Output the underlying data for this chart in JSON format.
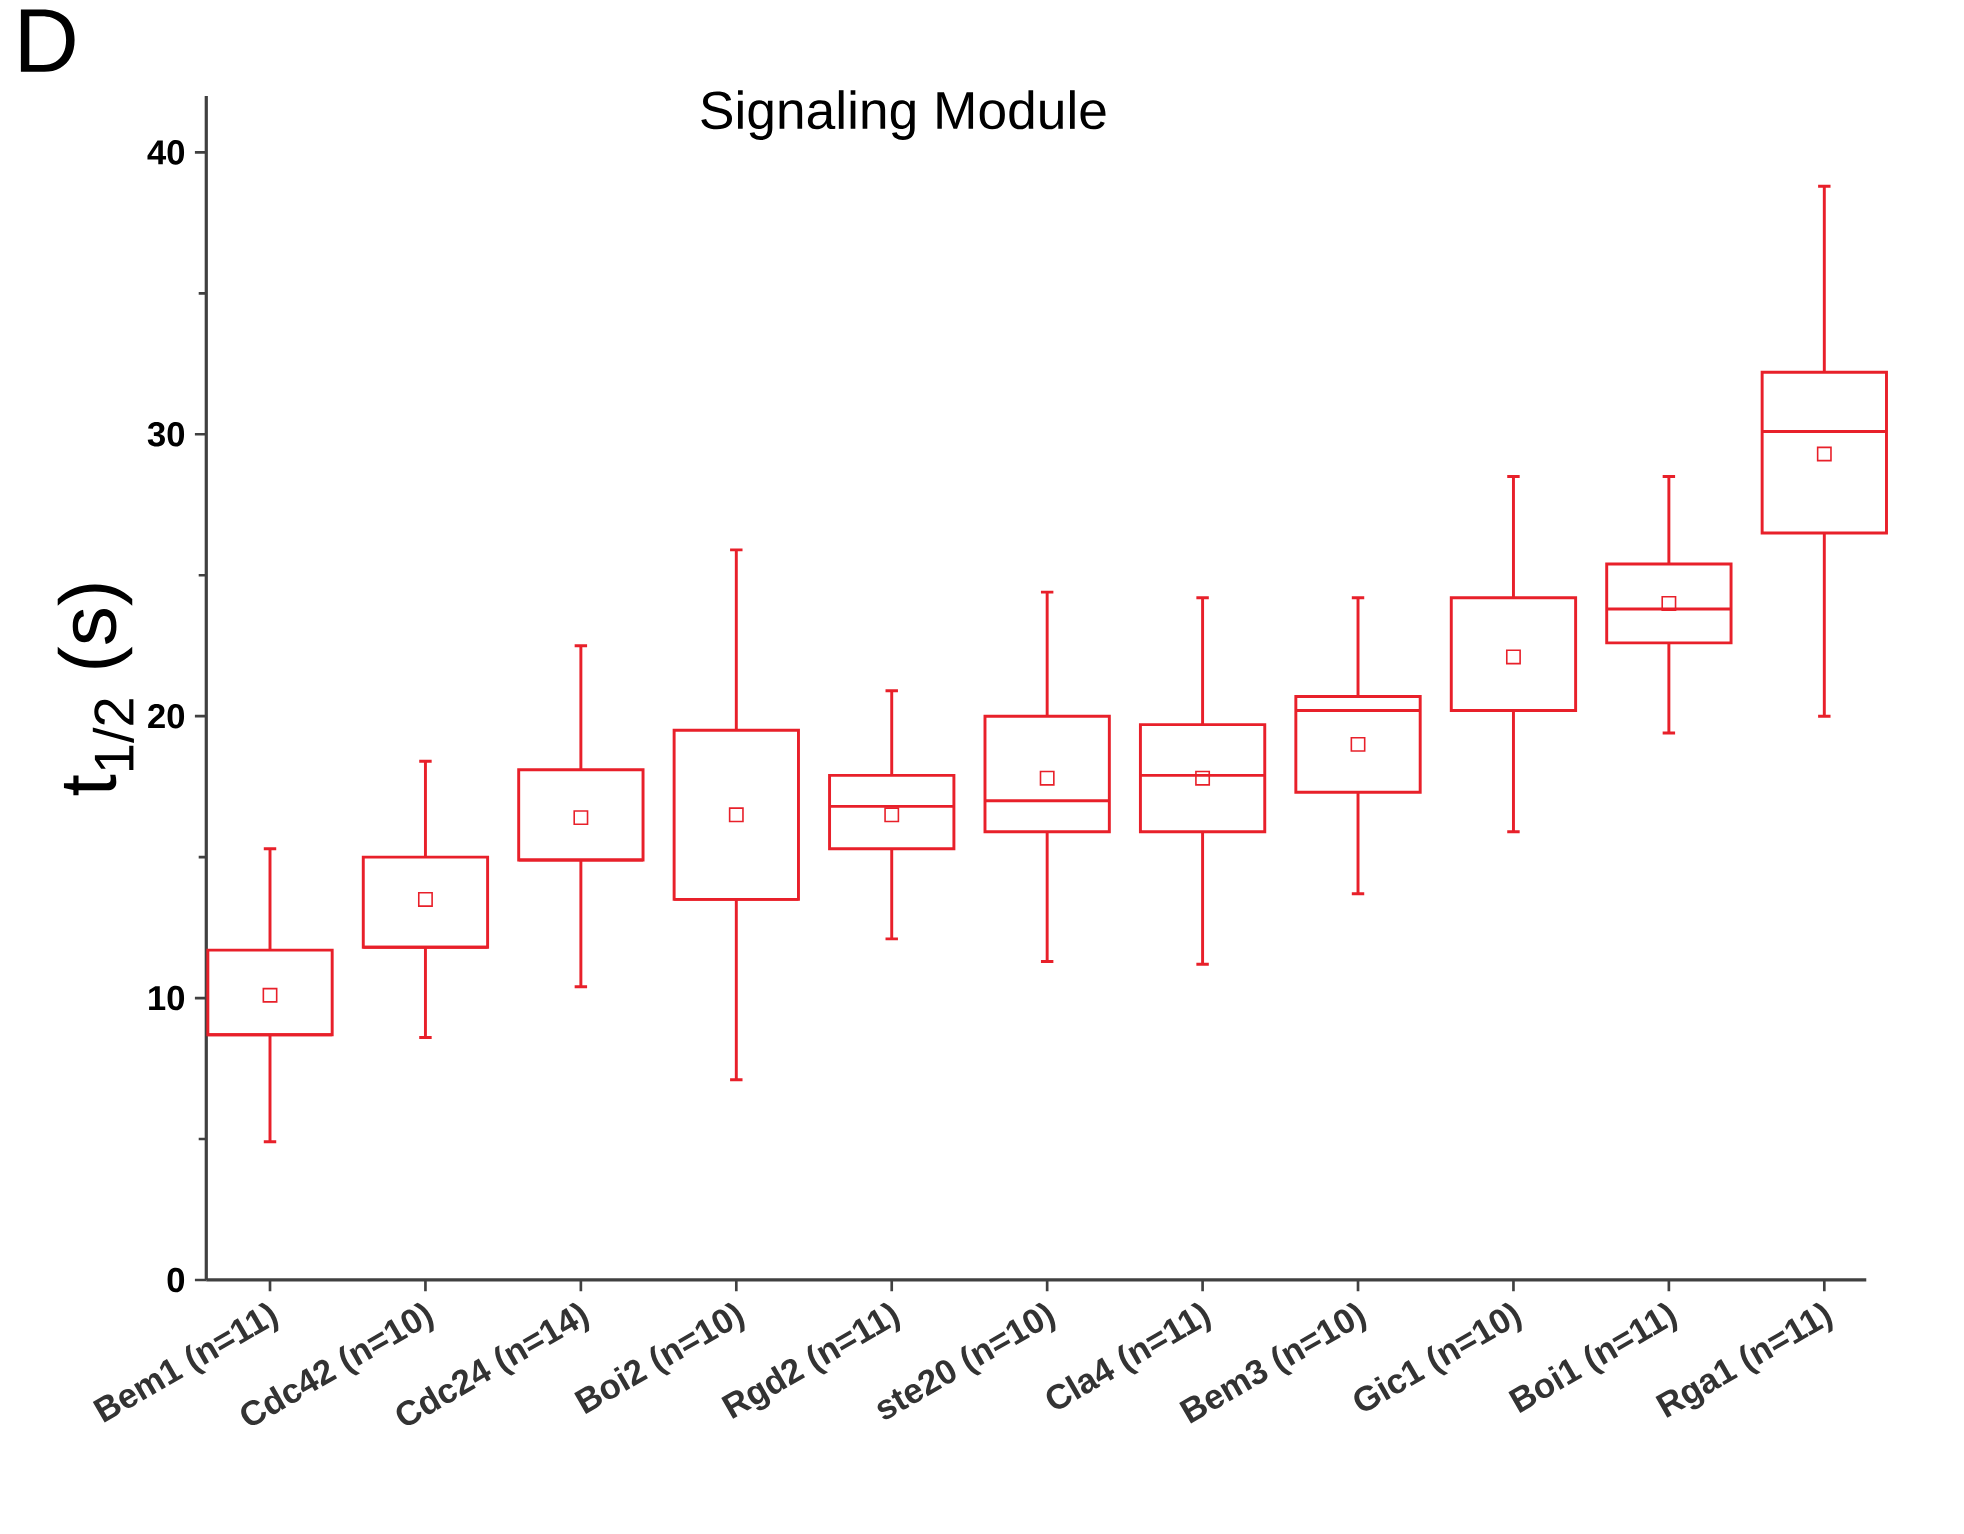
{
  "chart_data": {
    "type": "box",
    "title": "Signaling Module",
    "ylabel": "t$_{1/2}$ (s)",
    "annotations": [
      "D"
    ],
    "categories": [
      "Bem1 (n=11)",
      "Cdc42 (n=10)",
      "Cdc24 (n=14)",
      "Boi2 (n=10)",
      "Rgd2 (n=11)",
      "ste20 (n=10)",
      "Cla4 (n=11)",
      "Bem3 (n=10)",
      "Gic1 (n=10)",
      "Boi1 (n=11)",
      "Rga1 (n=11)"
    ],
    "series": [
      {
        "color": "#e8202a",
        "boxes": [
          {
            "low": 4.9,
            "q1": 8.7,
            "median": 8.7,
            "q3": 11.7,
            "high": 15.3,
            "mean": 10.1
          },
          {
            "low": 8.6,
            "q1": 11.8,
            "median": 11.8,
            "q3": 15.0,
            "high": 18.4,
            "mean": 13.5
          },
          {
            "low": 10.4,
            "q1": 14.9,
            "median": 14.9,
            "q3": 18.1,
            "high": 22.5,
            "mean": 16.4
          },
          {
            "low": 7.1,
            "q1": 13.5,
            "median": 13.5,
            "q3": 19.5,
            "high": 25.9,
            "mean": 16.5
          },
          {
            "low": 12.1,
            "q1": 15.3,
            "median": 16.8,
            "q3": 17.9,
            "high": 20.9,
            "mean": 16.5
          },
          {
            "low": 11.3,
            "q1": 15.9,
            "median": 17.0,
            "q3": 20.0,
            "high": 24.4,
            "mean": 17.8
          },
          {
            "low": 11.2,
            "q1": 15.9,
            "median": 17.9,
            "q3": 19.7,
            "high": 24.2,
            "mean": 17.8
          },
          {
            "low": 13.7,
            "q1": 17.3,
            "median": 20.2,
            "q3": 20.7,
            "high": 24.2,
            "mean": 19.0
          },
          {
            "low": 15.9,
            "q1": 20.2,
            "median": 20.2,
            "q3": 24.2,
            "high": 28.5,
            "mean": 22.1
          },
          {
            "low": 19.4,
            "q1": 22.6,
            "median": 23.8,
            "q3": 25.4,
            "high": 28.5,
            "mean": 24.0
          },
          {
            "low": 20.0,
            "q1": 26.5,
            "median": 30.1,
            "q3": 32.2,
            "high": 38.8,
            "mean": 29.3
          }
        ]
      }
    ],
    "ylim": [
      0,
      42
    ],
    "yticks": [
      0,
      10,
      20,
      30,
      40
    ],
    "marker": "square",
    "grid": false
  }
}
